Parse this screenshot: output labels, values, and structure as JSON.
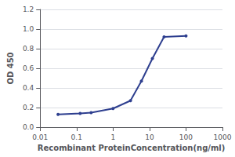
{
  "chart_data": {
    "type": "line",
    "x": [
      0.031,
      0.125,
      0.25,
      1.0,
      3.0,
      6.0,
      12.0,
      25.0,
      100.0
    ],
    "values": [
      0.13,
      0.14,
      0.148,
      0.19,
      0.27,
      0.47,
      0.7,
      0.92,
      0.93
    ],
    "color": "#2e3f8f",
    "marker": "circle",
    "xlabel": "Recombinant ProteinConcentration(ng/ml)",
    "ylabel": "OD 450",
    "log": "x",
    "xlim": [
      0.01,
      1000
    ],
    "xticks": [
      0.01,
      0.1,
      1,
      10,
      100,
      1000
    ],
    "ylim": [
      0,
      1.2
    ],
    "yticks": [
      {
        "value": 0,
        "label": "0.0"
      },
      0.2,
      0.4,
      0.6,
      0.8,
      {
        "value": 1,
        "label": "1.0"
      },
      1.2
    ],
    "grid": "y"
  }
}
